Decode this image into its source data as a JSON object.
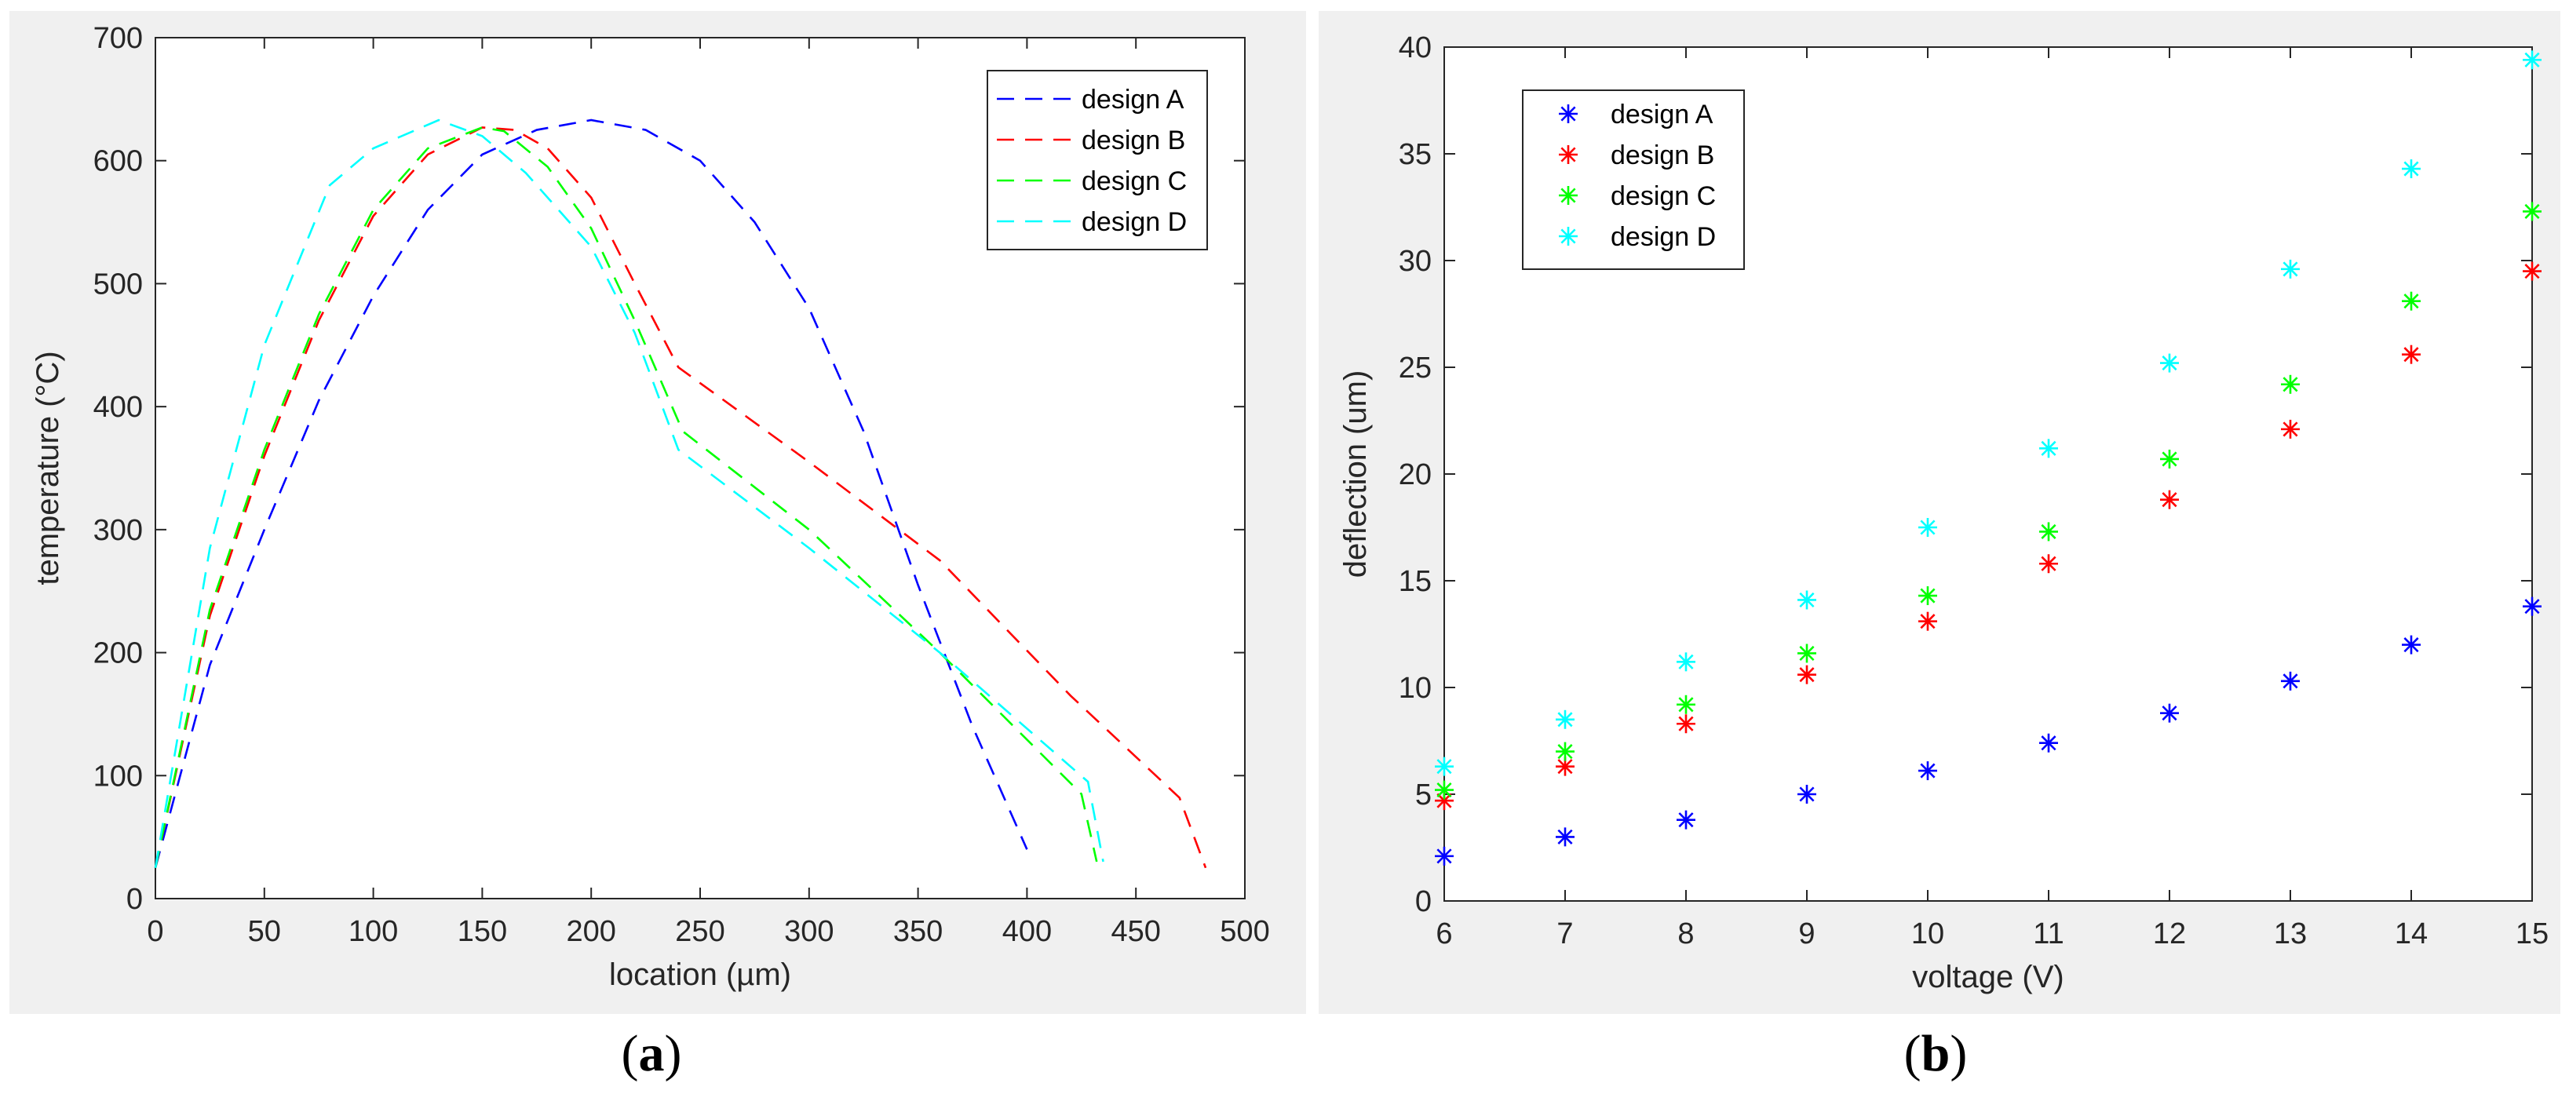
{
  "panels": [
    {
      "label": "a"
    },
    {
      "label": "b"
    }
  ],
  "chart_data": [
    {
      "type": "line",
      "title": "",
      "xlabel": "location (µm)",
      "ylabel": "temperature (°C)",
      "xlim": [
        0,
        500
      ],
      "ylim": [
        0,
        700
      ],
      "xticks": [
        0,
        50,
        100,
        150,
        200,
        250,
        300,
        350,
        400,
        450,
        500
      ],
      "yticks": [
        0,
        100,
        200,
        300,
        400,
        500,
        600,
        700
      ],
      "legend_position": "top-right",
      "line_style": "dashed",
      "series": [
        {
          "name": "design A",
          "color": "#0000ff",
          "x": [
            0,
            25,
            50,
            75,
            100,
            125,
            150,
            175,
            200,
            225,
            250,
            275,
            300,
            325,
            350,
            375,
            400
          ],
          "y": [
            25,
            190,
            300,
            405,
            490,
            560,
            605,
            625,
            633,
            625,
            600,
            550,
            480,
            380,
            255,
            140,
            40
          ]
        },
        {
          "name": "design B",
          "color": "#ff0000",
          "x": [
            0,
            25,
            50,
            75,
            100,
            125,
            150,
            165,
            180,
            200,
            220,
            240,
            300,
            360,
            420,
            470,
            482
          ],
          "y": [
            25,
            230,
            360,
            470,
            555,
            605,
            627,
            625,
            610,
            570,
            500,
            432,
            355,
            275,
            165,
            82,
            25
          ]
        },
        {
          "name": "design C",
          "color": "#00ff00",
          "x": [
            0,
            25,
            50,
            75,
            100,
            125,
            150,
            160,
            180,
            200,
            220,
            242,
            300,
            360,
            425,
            432
          ],
          "y": [
            25,
            235,
            365,
            475,
            560,
            610,
            627,
            624,
            595,
            545,
            470,
            380,
            300,
            200,
            85,
            30
          ]
        },
        {
          "name": "design D",
          "color": "#00ffff",
          "x": [
            0,
            25,
            50,
            80,
            100,
            130,
            150,
            170,
            200,
            220,
            240,
            300,
            360,
            428,
            435
          ],
          "y": [
            25,
            285,
            450,
            580,
            610,
            633,
            620,
            590,
            530,
            460,
            365,
            285,
            200,
            95,
            30
          ]
        }
      ]
    },
    {
      "type": "scatter",
      "title": "",
      "xlabel": "voltage (V)",
      "ylabel": "deflection (um)",
      "xlim": [
        6,
        15
      ],
      "ylim": [
        0,
        40
      ],
      "xticks": [
        6,
        7,
        8,
        9,
        10,
        11,
        12,
        13,
        14,
        15
      ],
      "yticks": [
        0,
        5,
        10,
        15,
        20,
        25,
        30,
        35,
        40
      ],
      "legend_position": "top-left",
      "marker": "asterisk",
      "x": [
        6,
        7,
        8,
        9,
        10,
        11,
        12,
        13,
        14,
        15
      ],
      "series": [
        {
          "name": "design A",
          "color": "#0000ff",
          "values": [
            2.1,
            3.0,
            3.8,
            5.0,
            6.1,
            7.4,
            8.8,
            10.3,
            12.0,
            13.8
          ]
        },
        {
          "name": "design B",
          "color": "#ff0000",
          "values": [
            4.7,
            6.3,
            8.3,
            10.6,
            13.1,
            15.8,
            18.8,
            22.1,
            25.6,
            29.5
          ]
        },
        {
          "name": "design C",
          "color": "#00ff00",
          "values": [
            5.2,
            7.0,
            9.2,
            11.6,
            14.3,
            17.3,
            20.7,
            24.2,
            28.1,
            32.3
          ]
        },
        {
          "name": "design D",
          "color": "#00ffff",
          "values": [
            6.3,
            8.5,
            11.2,
            14.1,
            17.5,
            21.2,
            25.2,
            29.6,
            34.3,
            39.4
          ]
        }
      ]
    }
  ]
}
